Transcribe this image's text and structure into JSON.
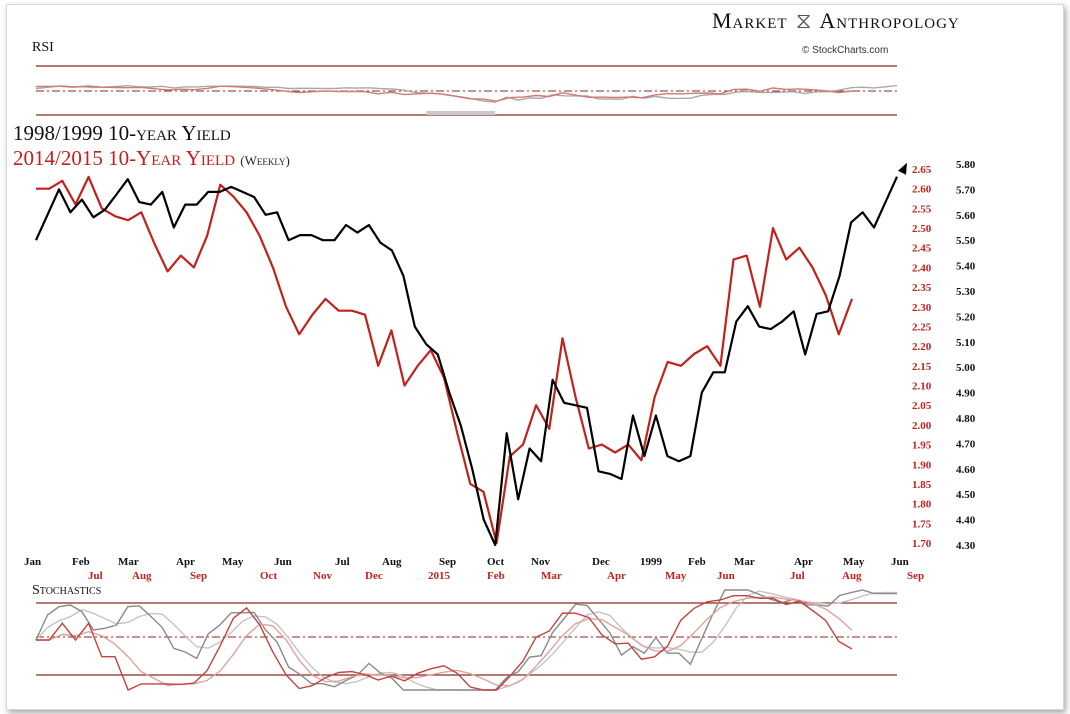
{
  "header": {
    "brand_left": "Market",
    "brand_right": "Anthropology",
    "brand_logo_icon": "dna-helix-icon",
    "credit": "© StockCharts.com"
  },
  "titles": {
    "black": "1998/1999 10-year Yield",
    "red": "2014/2015 10-Year Yield",
    "red_suffix": "(Weekly)"
  },
  "panels": {
    "rsi_label": "RSI",
    "stoch_label": "Stochastics"
  },
  "colors": {
    "black_series": "#000000",
    "red_series": "#c0221c",
    "rsi_fill": "#c8c8c8",
    "band_line": "#8b2a1e"
  },
  "chart_data": {
    "type": "line",
    "title": "",
    "xlabel": "",
    "ylabel": "",
    "x_labels_1998_1999": [
      "Jan",
      "Feb",
      "Mar",
      "Apr",
      "May",
      "Jun",
      "Jul",
      "Aug",
      "Sep",
      "Oct",
      "Nov",
      "Dec",
      "1999",
      "Feb",
      "Mar",
      "Apr",
      "May",
      "Jun"
    ],
    "x_labels_2014_2015": [
      "Jul",
      "Aug",
      "Sep",
      "Oct",
      "Nov",
      "Dec",
      "2015",
      "Feb",
      "Mar",
      "Apr",
      "May",
      "Jun",
      "Jul",
      "Aug",
      "Sep"
    ],
    "right_axis_black": {
      "ylim": [
        4.3,
        5.8
      ],
      "ticks": [
        "5.80",
        "5.70",
        "5.60",
        "5.50",
        "5.40",
        "5.30",
        "5.20",
        "5.10",
        "5.00",
        "4.90",
        "4.80",
        "4.70",
        "4.60",
        "4.50",
        "4.40",
        "4.30"
      ]
    },
    "right_axis_red": {
      "ylim": [
        1.7,
        2.65
      ],
      "ticks": [
        "2.65",
        "2.60",
        "2.55",
        "2.50",
        "2.45",
        "2.40",
        "2.35",
        "2.30",
        "2.25",
        "2.20",
        "2.15",
        "2.10",
        "2.05",
        "2.00",
        "1.95",
        "1.90",
        "1.85",
        "1.80",
        "1.75",
        "1.70"
      ]
    },
    "series": [
      {
        "name": "1998/1999 10-year Yield",
        "values": [
          5.5,
          5.6,
          5.7,
          5.61,
          5.66,
          5.59,
          5.62,
          5.68,
          5.74,
          5.65,
          5.64,
          5.69,
          5.55,
          5.64,
          5.64,
          5.69,
          5.69,
          5.71,
          5.69,
          5.67,
          5.6,
          5.61,
          5.5,
          5.52,
          5.52,
          5.5,
          5.5,
          5.56,
          5.53,
          5.56,
          5.49,
          5.46,
          5.36,
          5.16,
          5.09,
          5.05,
          4.9,
          4.77,
          4.6,
          4.4,
          4.3,
          4.74,
          4.48,
          4.68,
          4.63,
          4.95,
          4.86,
          4.85,
          4.84,
          4.59,
          4.58,
          4.56,
          4.81,
          4.65,
          4.81,
          4.65,
          4.63,
          4.65,
          4.9,
          4.98,
          4.98,
          5.18,
          5.24,
          5.16,
          5.15,
          5.18,
          5.22,
          5.05,
          5.21,
          5.22,
          5.36,
          5.57,
          5.61,
          5.55,
          5.65,
          5.75
        ]
      },
      {
        "name": "2014/2015 10-Year Yield",
        "values": [
          2.6,
          2.6,
          2.62,
          2.56,
          2.63,
          2.55,
          2.53,
          2.52,
          2.54,
          2.46,
          2.39,
          2.43,
          2.4,
          2.48,
          2.61,
          2.58,
          2.54,
          2.48,
          2.4,
          2.3,
          2.23,
          2.28,
          2.32,
          2.29,
          2.29,
          2.28,
          2.15,
          2.24,
          2.1,
          2.15,
          2.19,
          2.12,
          1.98,
          1.85,
          1.83,
          1.7,
          1.92,
          1.95,
          2.05,
          1.99,
          2.22,
          2.07,
          1.94,
          1.95,
          1.93,
          1.95,
          1.91,
          2.07,
          2.16,
          2.15,
          2.18,
          2.2,
          2.15,
          2.42,
          2.43,
          2.3,
          2.5,
          2.42,
          2.45,
          2.4,
          2.33,
          2.23,
          2.32
        ]
      }
    ]
  }
}
